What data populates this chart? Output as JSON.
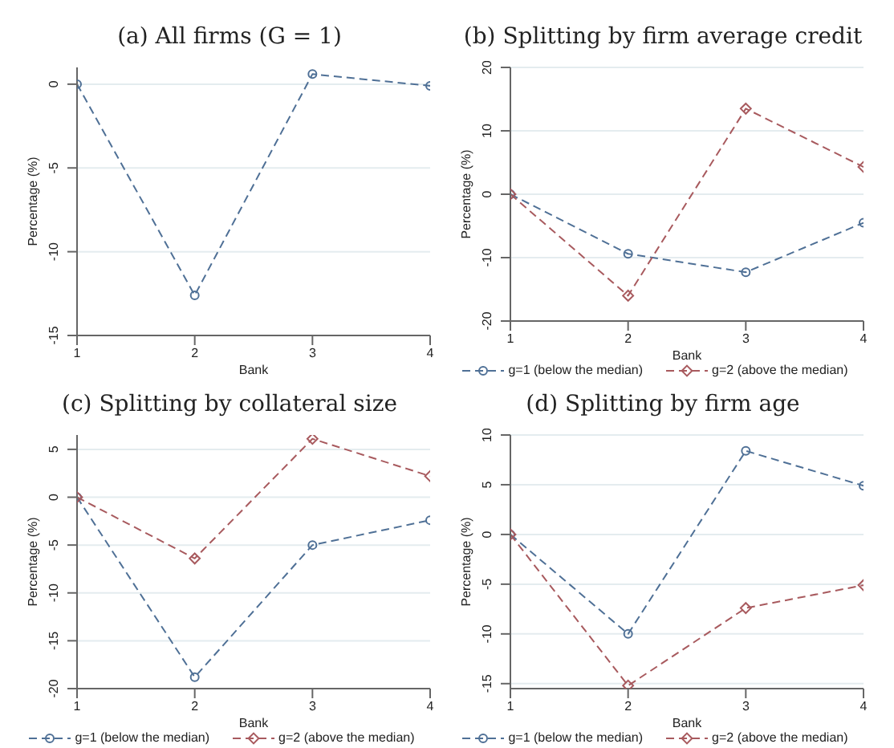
{
  "chart_data": [
    {
      "type": "line",
      "title": "(a) All firms (G = 1)",
      "xlabel": "Bank",
      "ylabel": "Percentage (%)",
      "x": [
        1,
        2,
        3,
        4
      ],
      "xlim": [
        1,
        4
      ],
      "xticks": [
        1,
        2,
        3,
        4
      ],
      "ylim": [
        -15,
        1
      ],
      "yticks": [
        -15,
        -10,
        -5,
        0
      ],
      "grid": "y",
      "legend": false,
      "line_style": "dashed",
      "series": [
        {
          "color": "#4f7096",
          "marker": "circle",
          "values": [
            0,
            -12.6,
            0.6,
            -0.1
          ]
        }
      ]
    },
    {
      "type": "line",
      "title": "(b) Splitting by firm average credit",
      "xlabel": "Bank",
      "ylabel": "Percentage (%)",
      "x": [
        1,
        2,
        3,
        4
      ],
      "xlim": [
        1,
        4
      ],
      "xticks": [
        1,
        2,
        3,
        4
      ],
      "ylim": [
        -20,
        20
      ],
      "yticks": [
        -20,
        -10,
        0,
        10,
        20
      ],
      "grid": "y",
      "legend": "bottom",
      "line_style": "dashed",
      "series": [
        {
          "name": "g=1 (below the median)",
          "color": "#4f7096",
          "marker": "circle",
          "values": [
            0,
            -9.4,
            -12.3,
            -4.5
          ]
        },
        {
          "name": "g=2 (above the median)",
          "color": "#a85a5e",
          "marker": "diamond",
          "values": [
            0,
            -16,
            13.5,
            4.3
          ]
        }
      ]
    },
    {
      "type": "line",
      "title": "(c) Splitting by collateral size",
      "xlabel": "Bank",
      "ylabel": "Percentage (%)",
      "x": [
        1,
        2,
        3,
        4
      ],
      "xlim": [
        1,
        4
      ],
      "xticks": [
        1,
        2,
        3,
        4
      ],
      "ylim": [
        -20,
        6.5
      ],
      "yticks": [
        -20,
        -15,
        -10,
        -5,
        0,
        5
      ],
      "grid": "y",
      "legend": "bottom",
      "line_style": "dashed",
      "series": [
        {
          "name": "g=1 (below the median)",
          "color": "#4f7096",
          "marker": "circle",
          "values": [
            0,
            -18.8,
            -5,
            -2.4
          ]
        },
        {
          "name": "g=2 (above the median)",
          "color": "#a85a5e",
          "marker": "diamond",
          "values": [
            0,
            -6.4,
            6.1,
            2.2
          ]
        }
      ]
    },
    {
      "type": "line",
      "title": "(d) Splitting by firm age",
      "xlabel": "Bank",
      "ylabel": "Percentage (%)",
      "x": [
        1,
        2,
        3,
        4
      ],
      "xlim": [
        1,
        4
      ],
      "xticks": [
        1,
        2,
        3,
        4
      ],
      "ylim": [
        -15.5,
        10
      ],
      "yticks": [
        -15,
        -10,
        -5,
        0,
        5,
        10
      ],
      "grid": "y",
      "legend": "bottom",
      "line_style": "dashed",
      "series": [
        {
          "name": "g=1 (below the median)",
          "color": "#4f7096",
          "marker": "circle",
          "values": [
            0,
            -10,
            8.4,
            4.9
          ]
        },
        {
          "name": "g=2 (above the median)",
          "color": "#a85a5e",
          "marker": "diamond",
          "values": [
            0,
            -15.2,
            -7.4,
            -5.1
          ]
        }
      ]
    }
  ]
}
